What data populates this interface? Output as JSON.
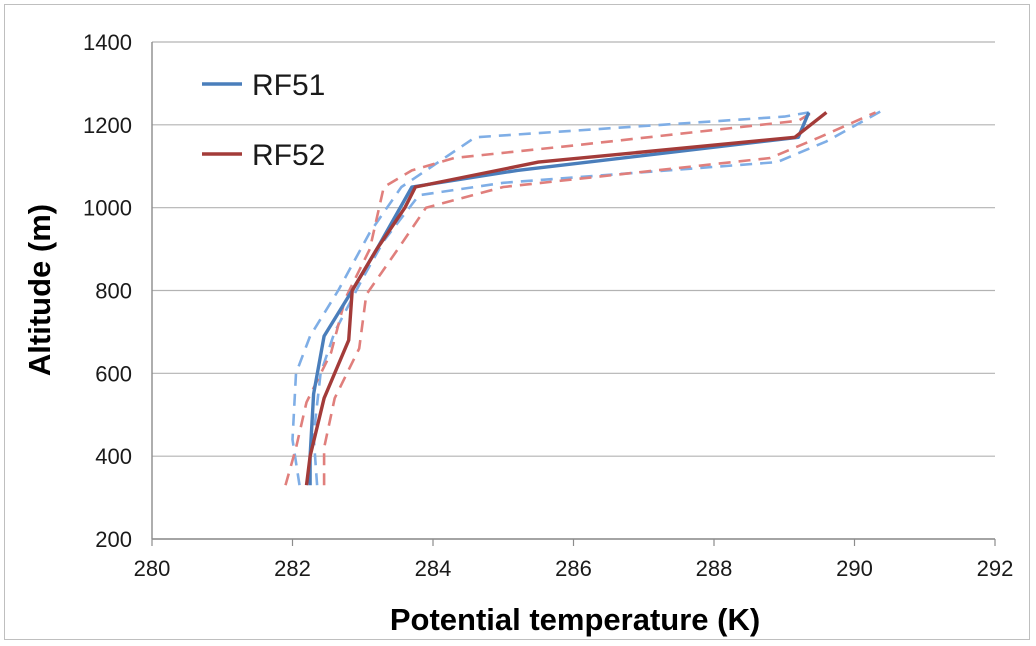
{
  "chart_data": {
    "type": "line",
    "xlabel": "Potential temperature (K)",
    "ylabel": "Altitude (m)",
    "xlim": [
      280,
      292
    ],
    "ylim": [
      200,
      1400
    ],
    "xticks": [
      280,
      282,
      284,
      286,
      288,
      290,
      292
    ],
    "yticks": [
      200,
      400,
      600,
      800,
      1000,
      1200,
      1400
    ],
    "grid": "horizontal",
    "legend_position": "top-left",
    "series": [
      {
        "name": "RF51",
        "color": "#4a7ebb",
        "style": "solid",
        "points": [
          [
            282.25,
            330
          ],
          [
            282.25,
            400
          ],
          [
            282.3,
            550
          ],
          [
            282.45,
            690
          ],
          [
            282.85,
            800
          ],
          [
            283.2,
            900
          ],
          [
            283.7,
            1050
          ],
          [
            285.2,
            1090
          ],
          [
            289.2,
            1170
          ],
          [
            289.35,
            1230
          ]
        ]
      },
      {
        "name": "RF52",
        "color": "#a33b39",
        "style": "solid",
        "points": [
          [
            282.2,
            330
          ],
          [
            282.25,
            400
          ],
          [
            282.45,
            540
          ],
          [
            282.8,
            680
          ],
          [
            282.85,
            800
          ],
          [
            283.2,
            900
          ],
          [
            283.6,
            1000
          ],
          [
            283.75,
            1050
          ],
          [
            285.5,
            1110
          ],
          [
            289.15,
            1170
          ],
          [
            289.6,
            1230
          ]
        ]
      },
      {
        "color": "#7faee6",
        "style": "dashed",
        "points": [
          [
            282.1,
            330
          ],
          [
            282.0,
            440
          ],
          [
            282.05,
            600
          ],
          [
            282.25,
            690
          ],
          [
            282.65,
            800
          ],
          [
            283.1,
            940
          ],
          [
            283.55,
            1050
          ],
          [
            284.6,
            1170
          ],
          [
            289.0,
            1220
          ],
          [
            289.35,
            1230
          ]
        ]
      },
      {
        "color": "#7faee6",
        "style": "dashed",
        "points": [
          [
            282.35,
            330
          ],
          [
            282.3,
            450
          ],
          [
            282.4,
            600
          ],
          [
            282.6,
            700
          ],
          [
            283.0,
            830
          ],
          [
            283.3,
            920
          ],
          [
            283.8,
            1030
          ],
          [
            285.0,
            1060
          ],
          [
            288.9,
            1110
          ],
          [
            289.6,
            1160
          ],
          [
            290.4,
            1235
          ]
        ]
      },
      {
        "color": "#e07f7c",
        "style": "dashed",
        "points": [
          [
            281.9,
            330
          ],
          [
            282.05,
            420
          ],
          [
            282.2,
            530
          ],
          [
            282.55,
            650
          ],
          [
            282.75,
            780
          ],
          [
            283.1,
            900
          ],
          [
            283.3,
            1050
          ],
          [
            283.7,
            1090
          ],
          [
            284.3,
            1120
          ],
          [
            286.0,
            1150
          ],
          [
            289.2,
            1210
          ],
          [
            289.45,
            1235
          ]
        ]
      },
      {
        "color": "#e07f7c",
        "style": "dashed",
        "points": [
          [
            282.45,
            330
          ],
          [
            282.45,
            420
          ],
          [
            282.6,
            540
          ],
          [
            282.95,
            660
          ],
          [
            283.05,
            790
          ],
          [
            283.5,
            900
          ],
          [
            283.9,
            1000
          ],
          [
            285.0,
            1050
          ],
          [
            288.8,
            1120
          ],
          [
            289.5,
            1170
          ],
          [
            290.3,
            1230
          ]
        ]
      }
    ]
  }
}
